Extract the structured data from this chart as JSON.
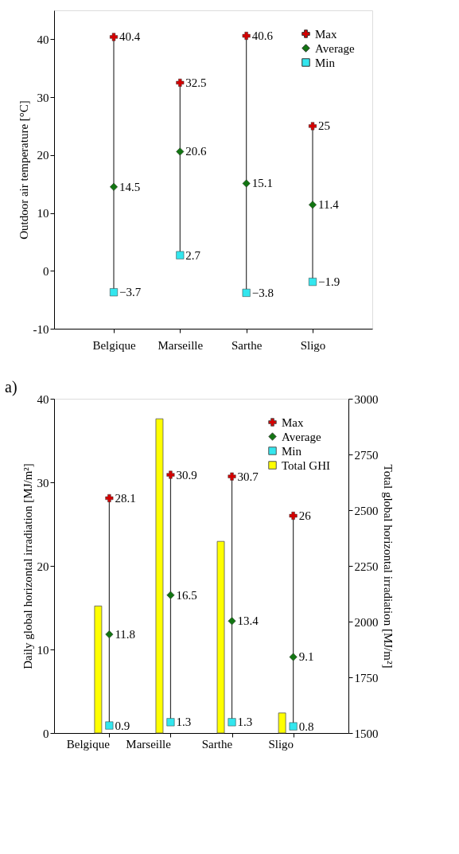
{
  "chart_data": [
    {
      "type": "scatter",
      "ylabel": "Outdoor air temperature [°C]",
      "categories": [
        "Belgique",
        "Marseille",
        "Sarthe",
        "Sligo"
      ],
      "ylim": [
        -10,
        45
      ],
      "yticks": [
        -10,
        0,
        10,
        20,
        30,
        40
      ],
      "legend": "top right",
      "series": [
        {
          "name": "Max",
          "marker": "cross",
          "color": "#d40000",
          "values": [
            40.4,
            32.5,
            40.6,
            25
          ],
          "value_labels": [
            "40.4",
            "32.5",
            "40.6",
            "25"
          ]
        },
        {
          "name": "Average",
          "marker": "diamond",
          "color": "#127512",
          "values": [
            14.5,
            20.6,
            15.1,
            11.4
          ],
          "value_labels": [
            "14.5",
            "20.6",
            "15.1",
            "11.4"
          ]
        },
        {
          "name": "Min",
          "marker": "square",
          "color": "#33e6ee",
          "values": [
            -3.7,
            2.7,
            -3.8,
            -1.9
          ],
          "value_labels": [
            "−3.7",
            "2.7",
            "−3.8",
            "−1.9"
          ]
        }
      ]
    },
    {
      "type": "scatter",
      "annotations": [
        "a)"
      ],
      "ylabel": "Daily global horizontal irradiation [MJ/m²]",
      "y2label": "Total global horizontal irradiation [MJ/m²]",
      "categories": [
        "Belgique",
        "Marseille",
        "Sarthe",
        "Sligo"
      ],
      "ylim": [
        0,
        40
      ],
      "yticks": [
        0,
        10,
        20,
        30,
        40
      ],
      "y2lim": [
        1500,
        3000
      ],
      "y2ticks": [
        1500,
        1750,
        2000,
        2250,
        2500,
        2750,
        3000
      ],
      "legend": "top right",
      "series": [
        {
          "name": "Max",
          "marker": "cross",
          "color": "#d40000",
          "values": [
            28.1,
            30.9,
            30.7,
            26
          ],
          "value_labels": [
            "28.1",
            "30.9",
            "30.7",
            "26"
          ]
        },
        {
          "name": "Average",
          "marker": "diamond",
          "color": "#127512",
          "values": [
            11.8,
            16.5,
            13.4,
            9.1
          ],
          "value_labels": [
            "11.8",
            "16.5",
            "13.4",
            "9.1"
          ]
        },
        {
          "name": "Min",
          "marker": "square",
          "color": "#33e6ee",
          "values": [
            0.9,
            1.3,
            1.3,
            0.8
          ],
          "value_labels": [
            "0.9",
            "1.3",
            "1.3",
            "0.8"
          ]
        },
        {
          "name": "Total GHI",
          "type": "bar",
          "axis": "y2",
          "color": "#ffff00",
          "values": [
            2070,
            2910,
            2360,
            1590
          ]
        }
      ]
    }
  ]
}
